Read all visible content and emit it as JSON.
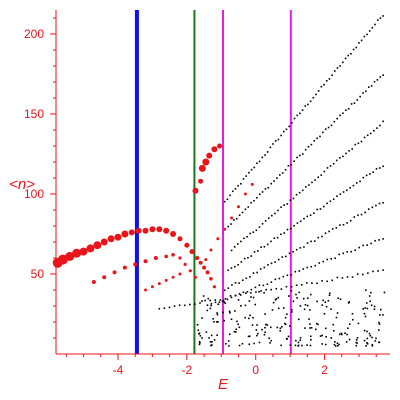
{
  "chart_data": {
    "type": "scatter",
    "title": "",
    "xlabel": "E",
    "ylabel": "<n>",
    "xlim": [
      -5.8,
      3.9
    ],
    "ylim": [
      0,
      215
    ],
    "xticks": [
      -4,
      -2,
      0,
      2
    ],
    "xtick_labels": [
      "-4",
      "-2",
      "0",
      "2"
    ],
    "yticks": [
      50,
      100,
      150,
      200
    ],
    "ytick_labels": [
      "50",
      "100",
      "150",
      "200"
    ],
    "grid": false,
    "legend": "none",
    "colors": {
      "axis": "#e8151b",
      "red_series": "#e8151b",
      "black_series": "#000000"
    },
    "vertical_lines": [
      {
        "x": -3.45,
        "color": "#1010ee"
      },
      {
        "x": -1.78,
        "color": "#1a7a1a"
      },
      {
        "x": -0.95,
        "color": "#e020e0"
      },
      {
        "x": 1.02,
        "color": "#e020e0"
      }
    ],
    "series": [
      {
        "color": "#e8151b",
        "size": "varying",
        "points": [
          [
            -5.75,
            57,
            5
          ],
          [
            -5.6,
            59,
            5
          ],
          [
            -5.4,
            61,
            4.5
          ],
          [
            -5.2,
            63,
            4.5
          ],
          [
            -5.0,
            64,
            4
          ],
          [
            -4.8,
            66,
            4
          ],
          [
            -4.6,
            68,
            4
          ],
          [
            -4.4,
            70,
            3.5
          ],
          [
            -4.2,
            72,
            3.5
          ],
          [
            -4.0,
            73,
            3.5
          ],
          [
            -3.8,
            75,
            3.5
          ],
          [
            -3.6,
            76,
            3
          ],
          [
            -3.4,
            77,
            3
          ],
          [
            -3.2,
            77,
            3
          ],
          [
            -3.0,
            78,
            3
          ],
          [
            -2.8,
            78,
            3
          ],
          [
            -2.6,
            77,
            3
          ],
          [
            -2.4,
            75,
            3
          ],
          [
            -2.2,
            72,
            2.5
          ],
          [
            -2.0,
            68,
            2.5
          ],
          [
            -1.85,
            64,
            2.5
          ],
          [
            -1.7,
            60,
            2
          ],
          [
            -1.6,
            57,
            2
          ],
          [
            -1.5,
            54,
            2
          ],
          [
            -1.4,
            51,
            2
          ],
          [
            -1.3,
            47,
            1.8
          ],
          [
            -1.2,
            42,
            1.6
          ],
          [
            -4.7,
            45,
            2
          ],
          [
            -4.4,
            48,
            2
          ],
          [
            -4.1,
            51,
            2
          ],
          [
            -3.8,
            54,
            2
          ],
          [
            -3.5,
            56,
            2
          ],
          [
            -3.2,
            58,
            2
          ],
          [
            -2.9,
            60,
            2
          ],
          [
            -2.6,
            61,
            1.8
          ],
          [
            -2.4,
            62,
            1.8
          ],
          [
            -2.2,
            60,
            1.6
          ],
          [
            -2.05,
            56,
            1.6
          ],
          [
            -1.9,
            52,
            1.6
          ],
          [
            -1.75,
            48,
            1.5
          ],
          [
            -3.2,
            40,
            1.5
          ],
          [
            -3.0,
            42,
            1.5
          ],
          [
            -2.8,
            44,
            1.5
          ],
          [
            -2.6,
            46,
            1.5
          ],
          [
            -2.4,
            48,
            1.5
          ],
          [
            -2.2,
            50,
            1.5
          ],
          [
            -1.55,
            116,
            3.5
          ],
          [
            -1.45,
            120,
            3.5
          ],
          [
            -1.35,
            124,
            3
          ],
          [
            -1.2,
            128,
            3
          ],
          [
            -1.05,
            130,
            2.5
          ],
          [
            -1.75,
            102,
            3
          ],
          [
            -1.6,
            108,
            2.5
          ],
          [
            -1.1,
            72,
            1.5
          ],
          [
            -0.9,
            78,
            1.5
          ],
          [
            -0.7,
            85,
            1.5
          ],
          [
            -0.5,
            92,
            1.5
          ],
          [
            -0.3,
            100,
            1.5
          ],
          [
            -0.1,
            106,
            1.5
          ],
          [
            -1.3,
            65,
            1.5
          ],
          [
            -1.45,
            59,
            1.5
          ]
        ]
      },
      {
        "color": "#000000",
        "size": 1,
        "bands": [
          {
            "x_start": -0.9,
            "y_start": 95,
            "x_end": 3.7,
            "y_end": 212,
            "n": 60
          },
          {
            "x_start": -0.8,
            "y_start": 80,
            "x_end": 3.7,
            "y_end": 175,
            "n": 55
          },
          {
            "x_start": -0.7,
            "y_start": 65,
            "x_end": 3.7,
            "y_end": 145,
            "n": 50
          },
          {
            "x_start": -0.8,
            "y_start": 52,
            "x_end": 3.7,
            "y_end": 118,
            "n": 48
          },
          {
            "x_start": -0.9,
            "y_start": 40,
            "x_end": 3.7,
            "y_end": 95,
            "n": 45
          },
          {
            "x_start": -1.4,
            "y_start": 30,
            "x_end": 3.7,
            "y_end": 72,
            "n": 45
          },
          {
            "x_start": -2.8,
            "y_start": 28,
            "x_end": 3.7,
            "y_end": 52,
            "n": 45
          }
        ],
        "cluster": {
          "x_range": [
            -1.7,
            3.8
          ],
          "y_range": [
            5,
            40
          ],
          "n": 230
        }
      }
    ]
  }
}
